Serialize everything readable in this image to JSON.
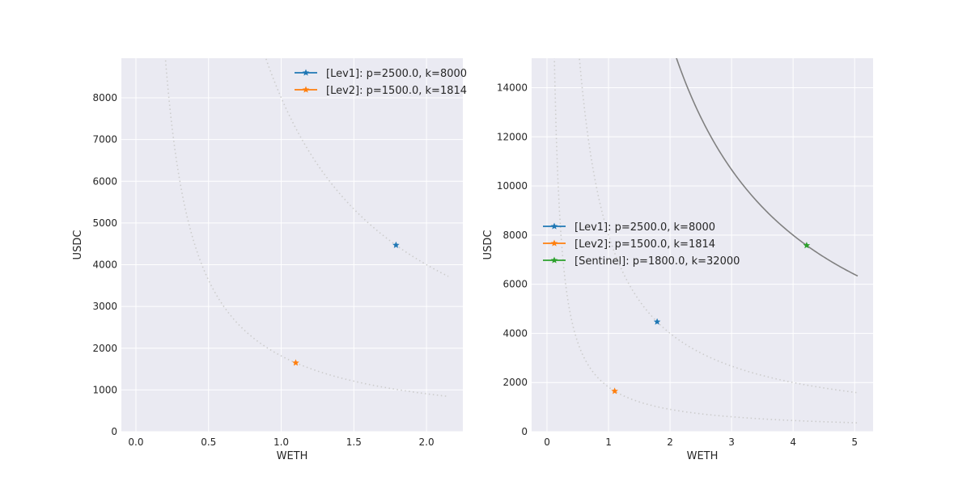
{
  "colors": {
    "plot_bg": "#eaeaf2",
    "grid": "#ffffff",
    "Lev1": "#1f77b4",
    "Lev2": "#ff7f0e",
    "Sentinel": "#2ca02c",
    "dotted_curve": "#cccccc",
    "solid_curve": "#808080"
  },
  "chart_data": [
    {
      "type": "scatter",
      "title": "",
      "xlabel": "WETH",
      "ylabel": "USDC",
      "xlim": [
        -0.1,
        2.25
      ],
      "ylim": [
        0,
        8950
      ],
      "xticks": [
        0.0,
        0.5,
        1.0,
        1.5,
        2.0
      ],
      "xtick_labels": [
        "0.0",
        "0.5",
        "1.0",
        "1.5",
        "2.0"
      ],
      "yticks": [
        0,
        1000,
        2000,
        3000,
        4000,
        5000,
        6000,
        7000,
        8000
      ],
      "ytick_labels": [
        "0",
        "1000",
        "2000",
        "3000",
        "4000",
        "5000",
        "6000",
        "7000",
        "8000"
      ],
      "grid": true,
      "legend_position": "upper right",
      "series": [
        {
          "name": "[Lev1]: p=2500.0, k=8000",
          "color_key": "Lev1",
          "marker": "star",
          "points": [
            [
              1.79,
              4470
            ]
          ]
        },
        {
          "name": "[Lev2]: p=1500.0, k=1814",
          "color_key": "Lev2",
          "marker": "star",
          "points": [
            [
              1.1,
              1650
            ]
          ]
        }
      ],
      "curves": [
        {
          "k": 8000,
          "style": "dotted",
          "color_key": "dotted_curve",
          "x_range": [
            0.25,
            2.15
          ]
        },
        {
          "k": 1814,
          "style": "dotted",
          "color_key": "dotted_curve",
          "x_range": [
            0.05,
            2.15
          ]
        }
      ]
    },
    {
      "type": "scatter",
      "title": "",
      "xlabel": "WETH",
      "ylabel": "USDC",
      "xlim": [
        -0.25,
        5.3
      ],
      "ylim": [
        0,
        15200
      ],
      "xticks": [
        0,
        1,
        2,
        3,
        4,
        5
      ],
      "xtick_labels": [
        "0",
        "1",
        "2",
        "3",
        "4",
        "5"
      ],
      "yticks": [
        0,
        2000,
        4000,
        6000,
        8000,
        10000,
        12000,
        14000
      ],
      "ytick_labels": [
        "0",
        "2000",
        "4000",
        "6000",
        "8000",
        "10000",
        "12000",
        "14000"
      ],
      "grid": true,
      "legend_position": "center left",
      "series": [
        {
          "name": "[Lev1]: p=2500.0, k=8000",
          "color_key": "Lev1",
          "marker": "star",
          "points": [
            [
              1.79,
              4470
            ]
          ]
        },
        {
          "name": "[Lev2]: p=1500.0, k=1814",
          "color_key": "Lev2",
          "marker": "star",
          "points": [
            [
              1.1,
              1650
            ]
          ]
        },
        {
          "name": "[Sentinel]: p=1800.0, k=32000",
          "color_key": "Sentinel",
          "marker": "star",
          "points": [
            [
              4.22,
              7580
            ]
          ]
        }
      ],
      "curves": [
        {
          "k": 8000,
          "style": "dotted",
          "color_key": "dotted_curve",
          "x_range": [
            0.3,
            5.05
          ]
        },
        {
          "k": 1814,
          "style": "dotted",
          "color_key": "dotted_curve",
          "x_range": [
            0.05,
            5.05
          ]
        },
        {
          "k": 32000,
          "style": "solid",
          "color_key": "solid_curve",
          "x_range": [
            2.0,
            5.05
          ]
        }
      ]
    }
  ]
}
